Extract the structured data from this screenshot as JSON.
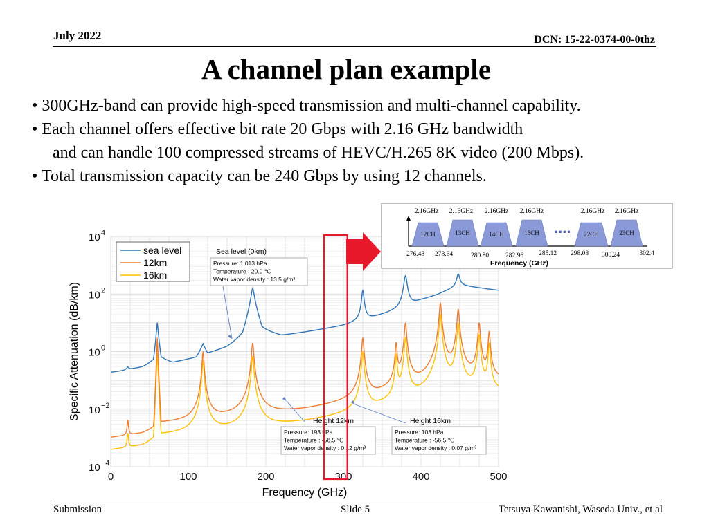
{
  "header": {
    "date": "July 2022",
    "dcn": "DCN: 15-22-0374-00-0thz"
  },
  "title": "A channel plan example",
  "bullets": [
    {
      "mark": "•",
      "text": "300GHz-band can provide high-speed transmission and multi-channel capability."
    },
    {
      "mark": "•",
      "text": "Each channel offers effective bit rate 20 Gbps with 2.16 GHz bandwidth"
    },
    {
      "mark": "",
      "text": "and can handle 100 compressed streams of HEVC/H.265 8K video (200 Mbps)."
    },
    {
      "mark": "•",
      "text": "Total transmission capacity can be 240 Gbps by using 12 channels."
    }
  ],
  "footer": {
    "left": "Submission",
    "center": "Slide 5",
    "right": "Tetsuya Kawanishi, Waseda Univ., et al"
  },
  "chart_data": [
    {
      "type": "line",
      "xlabel": "Frequency (GHz)",
      "ylabel": "Specific Attenuation (dB/km)",
      "xlim": [
        0,
        500
      ],
      "ylim_log10": [
        -4,
        4
      ],
      "y_scale": "log",
      "x_ticks": [
        "0",
        "100",
        "200",
        "300",
        "400",
        "500"
      ],
      "y_ticks": [
        {
          "base": "10",
          "exp": "4",
          "value": 10000
        },
        {
          "base": "10",
          "exp": "2",
          "value": 100
        },
        {
          "base": "10",
          "exp": "0",
          "value": 1
        },
        {
          "base": "10",
          "exp": "−2",
          "value": 0.01
        },
        {
          "base": "10",
          "exp": "−4",
          "value": 0.0001
        }
      ],
      "grid": true,
      "legend_position": "top-left",
      "highlight_band_ghz": [
        275,
        305
      ],
      "highlight_color": "#e8182b",
      "series": [
        {
          "name": "sea level",
          "color": "#2e74b6",
          "base": [
            [
              0,
              0.003
            ],
            [
              20,
              0.03
            ],
            [
              40,
              0.07
            ],
            [
              55,
              0.3
            ],
            [
              60,
              10
            ],
            [
              65,
              0.4
            ],
            [
              80,
              0.15
            ],
            [
              110,
              0.3
            ],
            [
              119,
              1.5
            ],
            [
              125,
              0.5
            ],
            [
              150,
              0.9
            ],
            [
              170,
              2.5
            ],
            [
              183,
              80
            ],
            [
              195,
              5
            ],
            [
              220,
              3
            ],
            [
              260,
              4.5
            ],
            [
              300,
              7
            ],
            [
              330,
              12
            ],
            [
              370,
              25
            ],
            [
              400,
              60
            ],
            [
              420,
              90
            ],
            [
              450,
              200
            ],
            [
              480,
              150
            ],
            [
              500,
              120
            ]
          ],
          "peaks": [
            [
              22,
              0.05,
              1.5
            ],
            [
              183,
              80,
              2
            ],
            [
              325,
              120,
              1.5
            ],
            [
              380,
              400,
              2
            ],
            [
              448,
              300,
              2
            ],
            [
              557,
              2000,
              5
            ]
          ]
        },
        {
          "name": "12km",
          "color": "#ed7d31",
          "base": [
            [
              0,
              5e-05
            ],
            [
              40,
              0.0002
            ],
            [
              55,
              0.001
            ],
            [
              60,
              3
            ],
            [
              65,
              0.002
            ],
            [
              100,
              0.002
            ],
            [
              150,
              0.003
            ],
            [
              200,
              0.004
            ],
            [
              250,
              0.005
            ],
            [
              300,
              0.008
            ],
            [
              350,
              0.015
            ],
            [
              400,
              0.03
            ],
            [
              450,
              0.05
            ],
            [
              500,
              0.08
            ]
          ],
          "peaks": [
            [
              22,
              0.003,
              0.8
            ],
            [
              119,
              1,
              1
            ],
            [
              183,
              2,
              1.2
            ],
            [
              325,
              3,
              1.2
            ],
            [
              368,
              2,
              1
            ],
            [
              380,
              10,
              1.2
            ],
            [
              425,
              50,
              1.2
            ],
            [
              448,
              30,
              1.2
            ],
            [
              475,
              10,
              1.2
            ],
            [
              488,
              5,
              1
            ]
          ]
        },
        {
          "name": "16km",
          "color": "#ffc000",
          "base": [
            [
              0,
              2e-05
            ],
            [
              40,
              8e-05
            ],
            [
              55,
              0.0005
            ],
            [
              60,
              1
            ],
            [
              65,
              0.0008
            ],
            [
              100,
              0.0008
            ],
            [
              150,
              0.001
            ],
            [
              200,
              0.0015
            ],
            [
              250,
              0.002
            ],
            [
              300,
              0.003
            ],
            [
              350,
              0.006
            ],
            [
              400,
              0.01
            ],
            [
              450,
              0.02
            ],
            [
              500,
              0.03
            ]
          ],
          "peaks": [
            [
              22,
              0.001,
              0.8
            ],
            [
              119,
              0.5,
              1
            ],
            [
              183,
              0.7,
              1.2
            ],
            [
              325,
              1,
              1.2
            ],
            [
              368,
              0.8,
              1
            ],
            [
              380,
              3,
              1.2
            ],
            [
              425,
              20,
              1.2
            ],
            [
              448,
              10,
              1.2
            ],
            [
              475,
              4,
              1.2
            ],
            [
              488,
              2,
              1
            ]
          ]
        }
      ],
      "annotations": [
        {
          "title": "Sea level (0km)",
          "lines": [
            "Pressure: 1,013 hPa",
            "Temperature : 20.0 ℃",
            "Water vapor density : 13.5 g/m³"
          ]
        },
        {
          "title": "Height 12km",
          "lines": [
            "Pressure: 193 hPa",
            "Temperature : -56.5 ℃",
            "Water vapor density : 0.12 g/m³"
          ]
        },
        {
          "title": "Height 16km",
          "lines": [
            "Pressure: 103 hPa",
            "Temperature : -56.5 ℃",
            "Water vapor density : 0.07 g/m³"
          ]
        }
      ]
    },
    {
      "type": "diagram",
      "xlabel": "Frequency (GHz)",
      "bandwidth_labels": [
        "2.16GHz",
        "2.16GHz",
        "2.16GHz",
        "2.16GHz",
        "2.16GHz",
        "2.16GHz"
      ],
      "frequency_ticks": [
        {
          "label": "276.48",
          "value": 276.48
        },
        {
          "label": "278.64",
          "value": 278.64
        },
        {
          "label": "280.80",
          "value": 280.8
        },
        {
          "label": "282.96",
          "value": 282.96
        },
        {
          "label": "285.12",
          "value": 285.12
        },
        {
          "label": "298.08",
          "value": 298.08
        },
        {
          "label": "300.24",
          "value": 300.24
        },
        {
          "label": "302.4",
          "value": 302.4
        }
      ],
      "channels": [
        {
          "label": "12CH",
          "start": 276.48,
          "end": 278.64
        },
        {
          "label": "13CH",
          "start": 278.64,
          "end": 280.8
        },
        {
          "label": "14CH",
          "start": 280.8,
          "end": 282.96
        },
        {
          "label": "15CH",
          "start": 282.96,
          "end": 285.12
        },
        {
          "label": "22CH",
          "start": 298.08,
          "end": 300.24
        },
        {
          "label": "23CH",
          "start": 300.24,
          "end": 302.4
        }
      ],
      "ellipsis": "....",
      "channel_fill": "#8a9ad8"
    }
  ]
}
